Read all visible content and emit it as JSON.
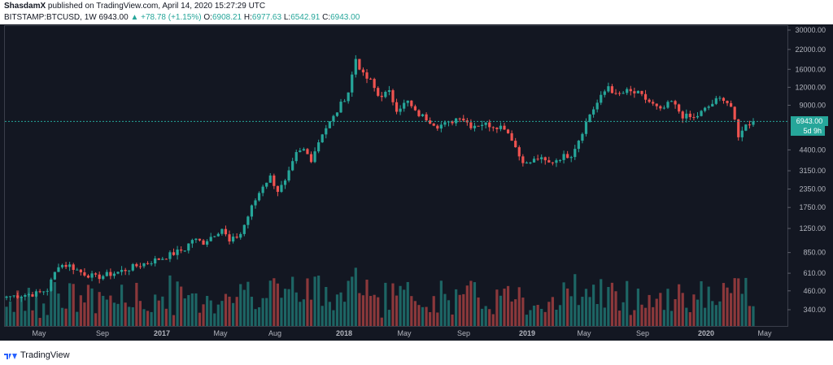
{
  "header": {
    "author": "ShasdamX",
    "published_text": "published on TradingView.com, April 14, 2020 15:27:29 UTC"
  },
  "ohlc": {
    "symbol": "BITSTAMP:BTCUSD, 1W",
    "last": "6943.00",
    "change": "▲ +78.78 (+1.15%)",
    "o_label": "O:",
    "o": "6908.21",
    "h_label": "H:",
    "h": "6977.63",
    "l_label": "L:",
    "l": "6542.91",
    "c_label": "C:",
    "c": "6943.00"
  },
  "price_tag": "6943.00",
  "countdown": "5d 9h",
  "footer": {
    "brand": "TradingView"
  },
  "colors": {
    "up": "#26a69a",
    "down": "#ef5350",
    "background": "#131722"
  },
  "chart_data": {
    "type": "candlestick",
    "scale": "log",
    "y_ticks": [
      30000,
      22000,
      16000,
      12000,
      9000,
      6943,
      4400,
      3150,
      2350,
      1750,
      1250,
      850,
      610,
      460,
      340
    ],
    "y_tick_labels": [
      "30000.00",
      "22000.00",
      "16000.00",
      "12000.00",
      "9000.00",
      "6943.00",
      "4400.00",
      "3150.00",
      "2350.00",
      "1750.00",
      "1250.00",
      "850.00",
      "610.00",
      "460.00",
      "340.00"
    ],
    "x_labels": [
      "May",
      "Sep",
      "2017",
      "May",
      "Aug",
      "2018",
      "May",
      "Sep",
      "2019",
      "May",
      "Sep",
      "2020",
      "May"
    ],
    "anchors": [
      {
        "i": 0,
        "c": 420
      },
      {
        "i": 8,
        "c": 440
      },
      {
        "i": 11,
        "c": 470
      },
      {
        "i": 14,
        "c": 700
      },
      {
        "i": 17,
        "c": 690
      },
      {
        "i": 20,
        "c": 620
      },
      {
        "i": 24,
        "c": 570
      },
      {
        "i": 30,
        "c": 620
      },
      {
        "i": 36,
        "c": 700
      },
      {
        "i": 42,
        "c": 780
      },
      {
        "i": 48,
        "c": 900
      },
      {
        "i": 50,
        "c": 1050
      },
      {
        "i": 53,
        "c": 1000
      },
      {
        "i": 56,
        "c": 1150
      },
      {
        "i": 58,
        "c": 1250
      },
      {
        "i": 60,
        "c": 1000
      },
      {
        "i": 63,
        "c": 1150
      },
      {
        "i": 66,
        "c": 1750
      },
      {
        "i": 69,
        "c": 2500
      },
      {
        "i": 71,
        "c": 2850
      },
      {
        "i": 73,
        "c": 2300
      },
      {
        "i": 75,
        "c": 2600
      },
      {
        "i": 78,
        "c": 4100
      },
      {
        "i": 80,
        "c": 4400
      },
      {
        "i": 82,
        "c": 3800
      },
      {
        "i": 85,
        "c": 5800
      },
      {
        "i": 88,
        "c": 7400
      },
      {
        "i": 92,
        "c": 11200
      },
      {
        "i": 94,
        "c": 19000
      },
      {
        "i": 96,
        "c": 14500
      },
      {
        "i": 98,
        "c": 13200
      },
      {
        "i": 100,
        "c": 10500
      },
      {
        "i": 103,
        "c": 11000
      },
      {
        "i": 105,
        "c": 8500
      },
      {
        "i": 108,
        "c": 9500
      },
      {
        "i": 110,
        "c": 8000
      },
      {
        "i": 113,
        "c": 7300
      },
      {
        "i": 116,
        "c": 6500
      },
      {
        "i": 119,
        "c": 6700
      },
      {
        "i": 122,
        "c": 7600
      },
      {
        "i": 125,
        "c": 6500
      },
      {
        "i": 128,
        "c": 6700
      },
      {
        "i": 131,
        "c": 6500
      },
      {
        "i": 134,
        "c": 6350
      },
      {
        "i": 136,
        "c": 5300
      },
      {
        "i": 138,
        "c": 4000
      },
      {
        "i": 140,
        "c": 3500
      },
      {
        "i": 143,
        "c": 3850
      },
      {
        "i": 146,
        "c": 3550
      },
      {
        "i": 149,
        "c": 3900
      },
      {
        "i": 152,
        "c": 4100
      },
      {
        "i": 154,
        "c": 5200
      },
      {
        "i": 157,
        "c": 7800
      },
      {
        "i": 160,
        "c": 10200
      },
      {
        "i": 162,
        "c": 12300
      },
      {
        "i": 164,
        "c": 10500
      },
      {
        "i": 167,
        "c": 11200
      },
      {
        "i": 170,
        "c": 10800
      },
      {
        "i": 173,
        "c": 9500
      },
      {
        "i": 176,
        "c": 8200
      },
      {
        "i": 179,
        "c": 9500
      },
      {
        "i": 182,
        "c": 7600
      },
      {
        "i": 185,
        "c": 7300
      },
      {
        "i": 188,
        "c": 8400
      },
      {
        "i": 191,
        "c": 9700
      },
      {
        "i": 193,
        "c": 10100
      },
      {
        "i": 195,
        "c": 8800
      },
      {
        "i": 197,
        "c": 5300
      },
      {
        "i": 198,
        "c": 6200
      },
      {
        "i": 200,
        "c": 6800
      },
      {
        "i": 201,
        "c": 6943
      }
    ]
  }
}
